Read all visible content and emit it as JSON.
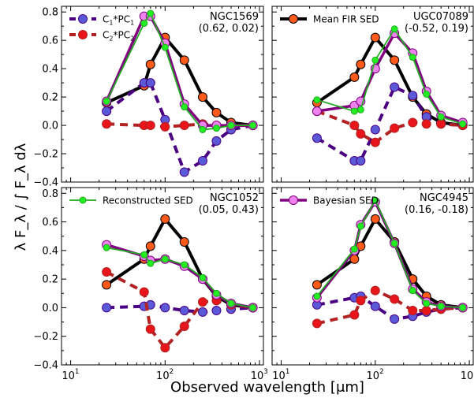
{
  "figure": {
    "xlabel": "Observed wavelength [μm]",
    "ylabel": "λ F_λ / ∫ F_λ dλ",
    "x_ticks": [
      {
        "v": 10,
        "label": "10",
        "sup": "1"
      },
      {
        "v": 100,
        "label": "10",
        "sup": "2"
      },
      {
        "v": 1000,
        "label": "10",
        "sup": "3"
      }
    ],
    "y_ticks": [
      "0.8",
      "0.6",
      "0.4",
      "0.2",
      "0.0",
      "−0.2",
      "−0.4"
    ],
    "colors": {
      "mean_fir": "#000000",
      "pc1": "#4b0082",
      "pc2": "#b22222",
      "reconstructed": "#22aa22",
      "bayesian": "#800080"
    }
  },
  "chart_data": [
    {
      "type": "line",
      "galaxy": "NGC1569",
      "coords": "(0.62, 0.02)",
      "xscale": "log",
      "xlim": [
        8,
        1100
      ],
      "ylim": [
        -0.4,
        0.84
      ],
      "legend": [
        "C1*PC1",
        "C2*PC2"
      ],
      "series": [
        {
          "name": "Mean FIR SED",
          "x": [
            24,
            60,
            70,
            100,
            160,
            250,
            350,
            500,
            850
          ],
          "y": [
            0.16,
            0.28,
            0.43,
            0.62,
            0.46,
            0.2,
            0.09,
            0.02,
            0.0
          ]
        },
        {
          "name": "C1*PC1",
          "x": [
            24,
            60,
            70,
            100,
            160,
            250,
            350,
            500,
            850
          ],
          "y": [
            0.1,
            0.3,
            0.3,
            0.04,
            -0.33,
            -0.25,
            -0.11,
            -0.03,
            0.0
          ]
        },
        {
          "name": "C2*PC2",
          "x": [
            24,
            60,
            70,
            100,
            160,
            250,
            350,
            500,
            850
          ],
          "y": [
            0.01,
            0.0,
            0.0,
            -0.01,
            0.0,
            0.01,
            0.0,
            0.0,
            0.0
          ]
        },
        {
          "name": "Reconstructed SED",
          "x": [
            24,
            60,
            70,
            100,
            160,
            250,
            350,
            500,
            850
          ],
          "y": [
            0.17,
            0.72,
            0.79,
            0.55,
            0.13,
            -0.03,
            -0.02,
            0.0,
            0.0
          ]
        },
        {
          "name": "Bayesian SED",
          "x": [
            24,
            60,
            70,
            100,
            160,
            250,
            350,
            500,
            850
          ],
          "y": [
            0.17,
            0.77,
            0.77,
            0.58,
            0.15,
            0.0,
            0.0,
            0.0,
            0.0
          ]
        }
      ]
    },
    {
      "type": "line",
      "galaxy": "UGC07089",
      "coords": "(-0.52, 0.19)",
      "xscale": "log",
      "xlim": [
        8,
        1100
      ],
      "ylim": [
        -0.4,
        0.84
      ],
      "legend": [
        "Mean FIR SED"
      ],
      "series": [
        {
          "name": "Mean FIR SED",
          "x": [
            24,
            60,
            70,
            100,
            160,
            250,
            350,
            500,
            850
          ],
          "y": [
            0.16,
            0.34,
            0.43,
            0.62,
            0.46,
            0.2,
            0.08,
            0.02,
            0.0
          ]
        },
        {
          "name": "C1*PC1",
          "x": [
            24,
            60,
            70,
            100,
            160,
            250,
            350,
            500,
            850
          ],
          "y": [
            -0.09,
            -0.25,
            -0.25,
            -0.03,
            0.27,
            0.21,
            0.06,
            0.01,
            0.0
          ]
        },
        {
          "name": "C2*PC2",
          "x": [
            24,
            60,
            70,
            100,
            160,
            250,
            350,
            500,
            850
          ],
          "y": [
            0.1,
            0.0,
            -0.06,
            -0.12,
            -0.02,
            0.02,
            0.01,
            0.01,
            0.0
          ]
        },
        {
          "name": "Reconstructed SED",
          "x": [
            24,
            60,
            70,
            100,
            160,
            250,
            350,
            500,
            850
          ],
          "y": [
            0.18,
            0.1,
            0.11,
            0.46,
            0.68,
            0.48,
            0.22,
            0.06,
            0.01
          ]
        },
        {
          "name": "Bayesian SED",
          "x": [
            24,
            60,
            70,
            100,
            160,
            250,
            350,
            500,
            850
          ],
          "y": [
            0.1,
            0.14,
            0.17,
            0.4,
            0.65,
            0.51,
            0.24,
            0.07,
            0.02
          ]
        }
      ]
    },
    {
      "type": "line",
      "galaxy": "NGC1052",
      "coords": "(0.05, 0.43)",
      "xscale": "log",
      "xlim": [
        8,
        1100
      ],
      "ylim": [
        -0.4,
        0.84
      ],
      "legend": [
        "Reconstructed SED"
      ],
      "series": [
        {
          "name": "Mean FIR SED",
          "x": [
            24,
            60,
            70,
            100,
            160,
            250,
            350,
            500,
            850
          ],
          "y": [
            0.16,
            0.34,
            0.43,
            0.62,
            0.46,
            0.2,
            0.08,
            0.02,
            0.0
          ]
        },
        {
          "name": "C1*PC1",
          "x": [
            24,
            60,
            70,
            100,
            160,
            250,
            350,
            500,
            850
          ],
          "y": [
            0.0,
            0.01,
            0.02,
            0.0,
            -0.02,
            -0.03,
            -0.02,
            -0.01,
            0.0
          ]
        },
        {
          "name": "C2*PC2",
          "x": [
            24,
            60,
            70,
            100,
            160,
            250,
            350,
            500,
            850
          ],
          "y": [
            0.25,
            0.11,
            -0.15,
            -0.28,
            -0.13,
            0.04,
            0.05,
            0.02,
            0.0
          ]
        },
        {
          "name": "Reconstructed SED",
          "x": [
            24,
            60,
            70,
            100,
            160,
            250,
            350,
            500,
            850
          ],
          "y": [
            0.42,
            0.37,
            0.31,
            0.34,
            0.3,
            0.21,
            0.1,
            0.03,
            0.0
          ]
        },
        {
          "name": "Bayesian SED",
          "x": [
            24,
            60,
            70,
            100,
            160,
            250,
            350,
            500,
            850
          ],
          "y": [
            0.44,
            0.36,
            0.33,
            0.34,
            0.29,
            0.2,
            0.09,
            0.03,
            0.0
          ]
        }
      ]
    },
    {
      "type": "line",
      "galaxy": "NGC4945",
      "coords": "(0.16, -0.18)",
      "xscale": "log",
      "xlim": [
        8,
        1100
      ],
      "ylim": [
        -0.4,
        0.84
      ],
      "legend": [
        "Bayesian SED"
      ],
      "series": [
        {
          "name": "Mean FIR SED",
          "x": [
            24,
            60,
            70,
            100,
            160,
            250,
            350,
            500,
            850
          ],
          "y": [
            0.16,
            0.34,
            0.43,
            0.62,
            0.46,
            0.2,
            0.08,
            0.02,
            0.0
          ]
        },
        {
          "name": "C1*PC1",
          "x": [
            24,
            60,
            70,
            100,
            160,
            250,
            350,
            500,
            850
          ],
          "y": [
            0.02,
            0.07,
            0.08,
            0.01,
            -0.08,
            -0.06,
            -0.03,
            -0.01,
            0.0
          ]
        },
        {
          "name": "C2*PC2",
          "x": [
            24,
            60,
            70,
            100,
            160,
            250,
            350,
            500,
            850
          ],
          "y": [
            -0.11,
            -0.05,
            0.05,
            0.12,
            0.06,
            -0.02,
            -0.02,
            -0.01,
            0.0
          ]
        },
        {
          "name": "Reconstructed SED",
          "x": [
            24,
            60,
            70,
            100,
            160,
            250,
            350,
            500,
            850
          ],
          "y": [
            0.08,
            0.41,
            0.57,
            0.75,
            0.45,
            0.12,
            0.03,
            0.01,
            0.0
          ]
        },
        {
          "name": "Bayesian SED",
          "x": [
            24,
            60,
            70,
            100,
            160,
            250,
            350,
            500,
            850
          ],
          "y": [
            0.07,
            0.4,
            0.58,
            0.74,
            0.45,
            0.13,
            0.04,
            0.01,
            0.0
          ]
        }
      ]
    }
  ]
}
